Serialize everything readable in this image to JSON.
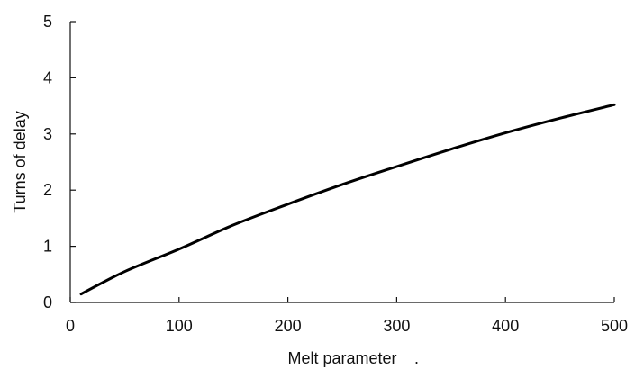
{
  "chart_data": {
    "type": "line",
    "title": "",
    "xlabel": "Melt parameter",
    "xlabel_trailing_mark": ".",
    "ylabel": "Turns of delay",
    "xlim": [
      0,
      500
    ],
    "ylim": [
      0,
      5
    ],
    "xticks": [
      0,
      100,
      200,
      300,
      400,
      500
    ],
    "yticks": [
      0,
      1,
      2,
      3,
      4,
      5
    ],
    "grid": false,
    "legend": "none",
    "series": [
      {
        "color": "#000000",
        "x": [
          10,
          50,
          100,
          150,
          200,
          250,
          300,
          350,
          400,
          450,
          500
        ],
        "y": [
          0.15,
          0.55,
          0.95,
          1.38,
          1.75,
          2.1,
          2.42,
          2.73,
          3.02,
          3.28,
          3.52
        ]
      }
    ]
  }
}
